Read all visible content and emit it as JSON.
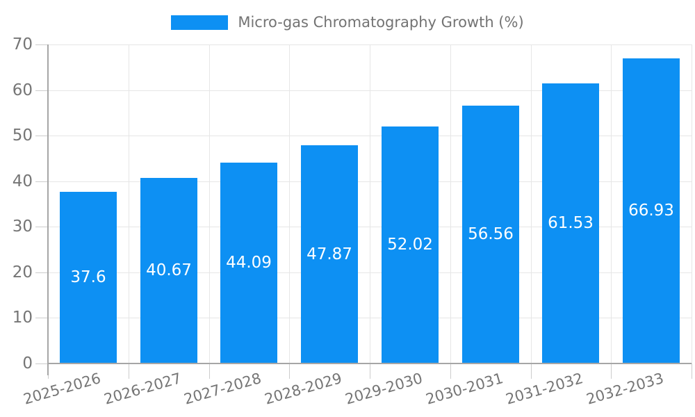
{
  "legend": {
    "label": "Micro-gas Chromatography Growth (%)",
    "swatch_color": "#0d90f3"
  },
  "chart_data": {
    "type": "bar",
    "title": "Micro-gas Chromatography Growth (%)",
    "categories": [
      "2025-2026",
      "2026-2027",
      "2027-2028",
      "2028-2029",
      "2029-2030",
      "2030-2031",
      "2031-2032",
      "2032-2033"
    ],
    "values": [
      37.6,
      40.67,
      44.09,
      47.87,
      52.02,
      56.56,
      61.53,
      66.93
    ],
    "value_labels": [
      "37.6",
      "40.67",
      "44.09",
      "47.87",
      "52.02",
      "56.56",
      "61.53",
      "66.93"
    ],
    "xlabel": "",
    "ylabel": "",
    "ylim": [
      0,
      70
    ],
    "yticks": [
      0,
      10,
      20,
      30,
      40,
      50,
      60,
      70
    ],
    "grid": true,
    "legend_position": "top-center",
    "bar_color": "#0d90f3",
    "value_label_color": "#ffffff"
  }
}
